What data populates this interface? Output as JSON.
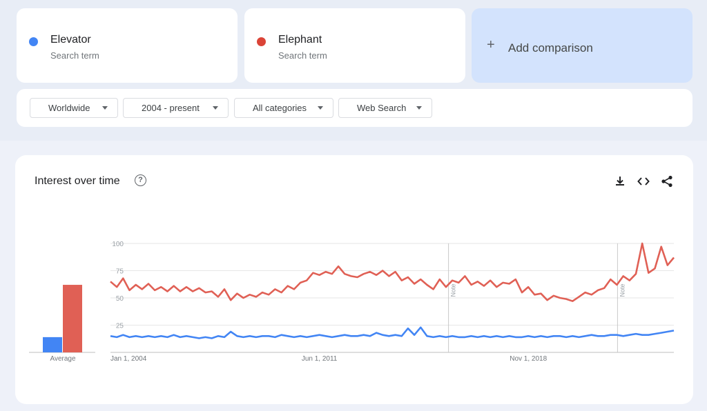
{
  "terms": [
    {
      "name": "Elevator",
      "subtitle": "Search term",
      "color": "#4285f4"
    },
    {
      "name": "Elephant",
      "subtitle": "Search term",
      "color": "#db4437"
    }
  ],
  "add_comparison": {
    "label": "Add comparison",
    "icon": "plus-icon"
  },
  "filters": [
    {
      "label": "Worldwide"
    },
    {
      "label": "2004 - present"
    },
    {
      "label": "All categories"
    },
    {
      "label": "Web Search"
    }
  ],
  "panel": {
    "title": "Interest over time",
    "help_icon": "help-circle-icon",
    "tools": [
      "download-icon",
      "embed-code-icon",
      "share-icon"
    ]
  },
  "chart_data": [
    {
      "type": "bar",
      "categories": [
        "Average"
      ],
      "series": [
        {
          "name": "Elevator",
          "values": [
            14
          ],
          "color": "#4285f4"
        },
        {
          "name": "Elephant",
          "values": [
            62
          ],
          "color": "#e06055"
        }
      ],
      "ylim": [
        0,
        100
      ]
    },
    {
      "type": "line",
      "x_ticks": [
        "Jan 1, 2004",
        "Jun 1, 2011",
        "Nov 1, 2018"
      ],
      "y_ticks": [
        25,
        50,
        75,
        100
      ],
      "ylim": [
        0,
        100
      ],
      "xlim": [
        "2004-01",
        "2024-01"
      ],
      "notes": [
        {
          "x": "2016-01",
          "label": "Note"
        },
        {
          "x": "2022-01",
          "label": "Note"
        }
      ],
      "series": [
        {
          "name": "Elevator",
          "color": "#4285f4",
          "x_start": "2004-01",
          "step": "quarterly",
          "values": [
            15,
            14,
            16,
            14,
            15,
            14,
            15,
            14,
            15,
            14,
            16,
            14,
            15,
            14,
            13,
            14,
            13,
            15,
            14,
            19,
            15,
            14,
            15,
            14,
            15,
            15,
            14,
            16,
            15,
            14,
            15,
            14,
            15,
            16,
            15,
            14,
            15,
            16,
            15,
            15,
            16,
            15,
            18,
            16,
            15,
            16,
            15,
            22,
            16,
            23,
            15,
            14,
            15,
            14,
            15,
            14,
            14,
            15,
            14,
            15,
            14,
            15,
            14,
            15,
            14,
            14,
            15,
            14,
            15,
            14,
            15,
            15,
            14,
            15,
            14,
            15,
            16,
            15,
            15,
            16,
            16,
            15,
            16,
            17,
            16,
            16,
            17,
            18,
            19,
            20
          ]
        },
        {
          "name": "Elephant",
          "color": "#e06055",
          "x_start": "2004-01",
          "step": "quarterly",
          "values": [
            65,
            60,
            68,
            57,
            62,
            58,
            63,
            57,
            60,
            56,
            61,
            56,
            60,
            56,
            59,
            55,
            56,
            51,
            58,
            48,
            54,
            50,
            53,
            51,
            55,
            53,
            58,
            55,
            61,
            58,
            64,
            66,
            73,
            71,
            74,
            72,
            79,
            72,
            70,
            69,
            72,
            74,
            71,
            75,
            70,
            74,
            66,
            69,
            63,
            67,
            62,
            58,
            67,
            60,
            66,
            64,
            70,
            62,
            65,
            61,
            66,
            60,
            64,
            63,
            67,
            55,
            60,
            53,
            54,
            48,
            52,
            50,
            49,
            47,
            51,
            55,
            53,
            57,
            59,
            67,
            62,
            70,
            66,
            72,
            100,
            73,
            77,
            97,
            80,
            87
          ]
        }
      ]
    }
  ]
}
